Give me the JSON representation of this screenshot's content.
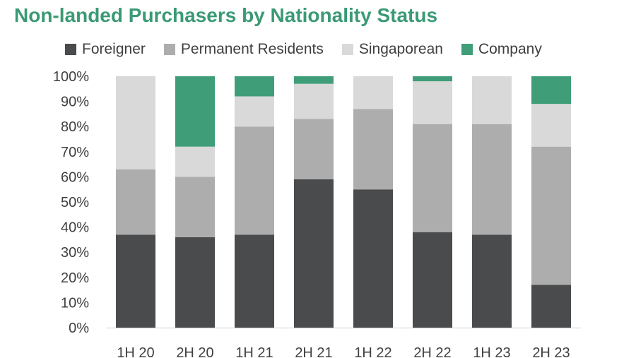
{
  "chart_data": {
    "type": "bar",
    "stacked": true,
    "title": "Non-landed Purchasers by Nationality Status",
    "categories": [
      "1H 20",
      "2H 20",
      "1H 21",
      "2H 21",
      "1H 22",
      "2H 22",
      "1H 23",
      "2H 23"
    ],
    "series": [
      {
        "name": "Foreigner",
        "color": "#4a4b4d",
        "values": [
          37,
          36,
          37,
          59,
          55,
          38,
          37,
          17
        ]
      },
      {
        "name": "Permanent Residents",
        "color": "#adadad",
        "values": [
          26,
          24,
          43,
          24,
          32,
          43,
          44,
          55
        ]
      },
      {
        "name": "Singaporean",
        "color": "#d9d9d9",
        "values": [
          37,
          12,
          12,
          14,
          13,
          17,
          19,
          17
        ]
      },
      {
        "name": "Company",
        "color": "#3f9e78",
        "values": [
          0,
          28,
          8,
          3,
          0,
          2,
          0,
          11
        ]
      }
    ],
    "ylim": [
      0,
      100
    ],
    "yticks": [
      "0%",
      "10%",
      "20%",
      "30%",
      "40%",
      "50%",
      "60%",
      "70%",
      "80%",
      "90%",
      "100%"
    ],
    "ylabel": "",
    "xlabel": "",
    "legend_position": "top",
    "grid": false
  }
}
